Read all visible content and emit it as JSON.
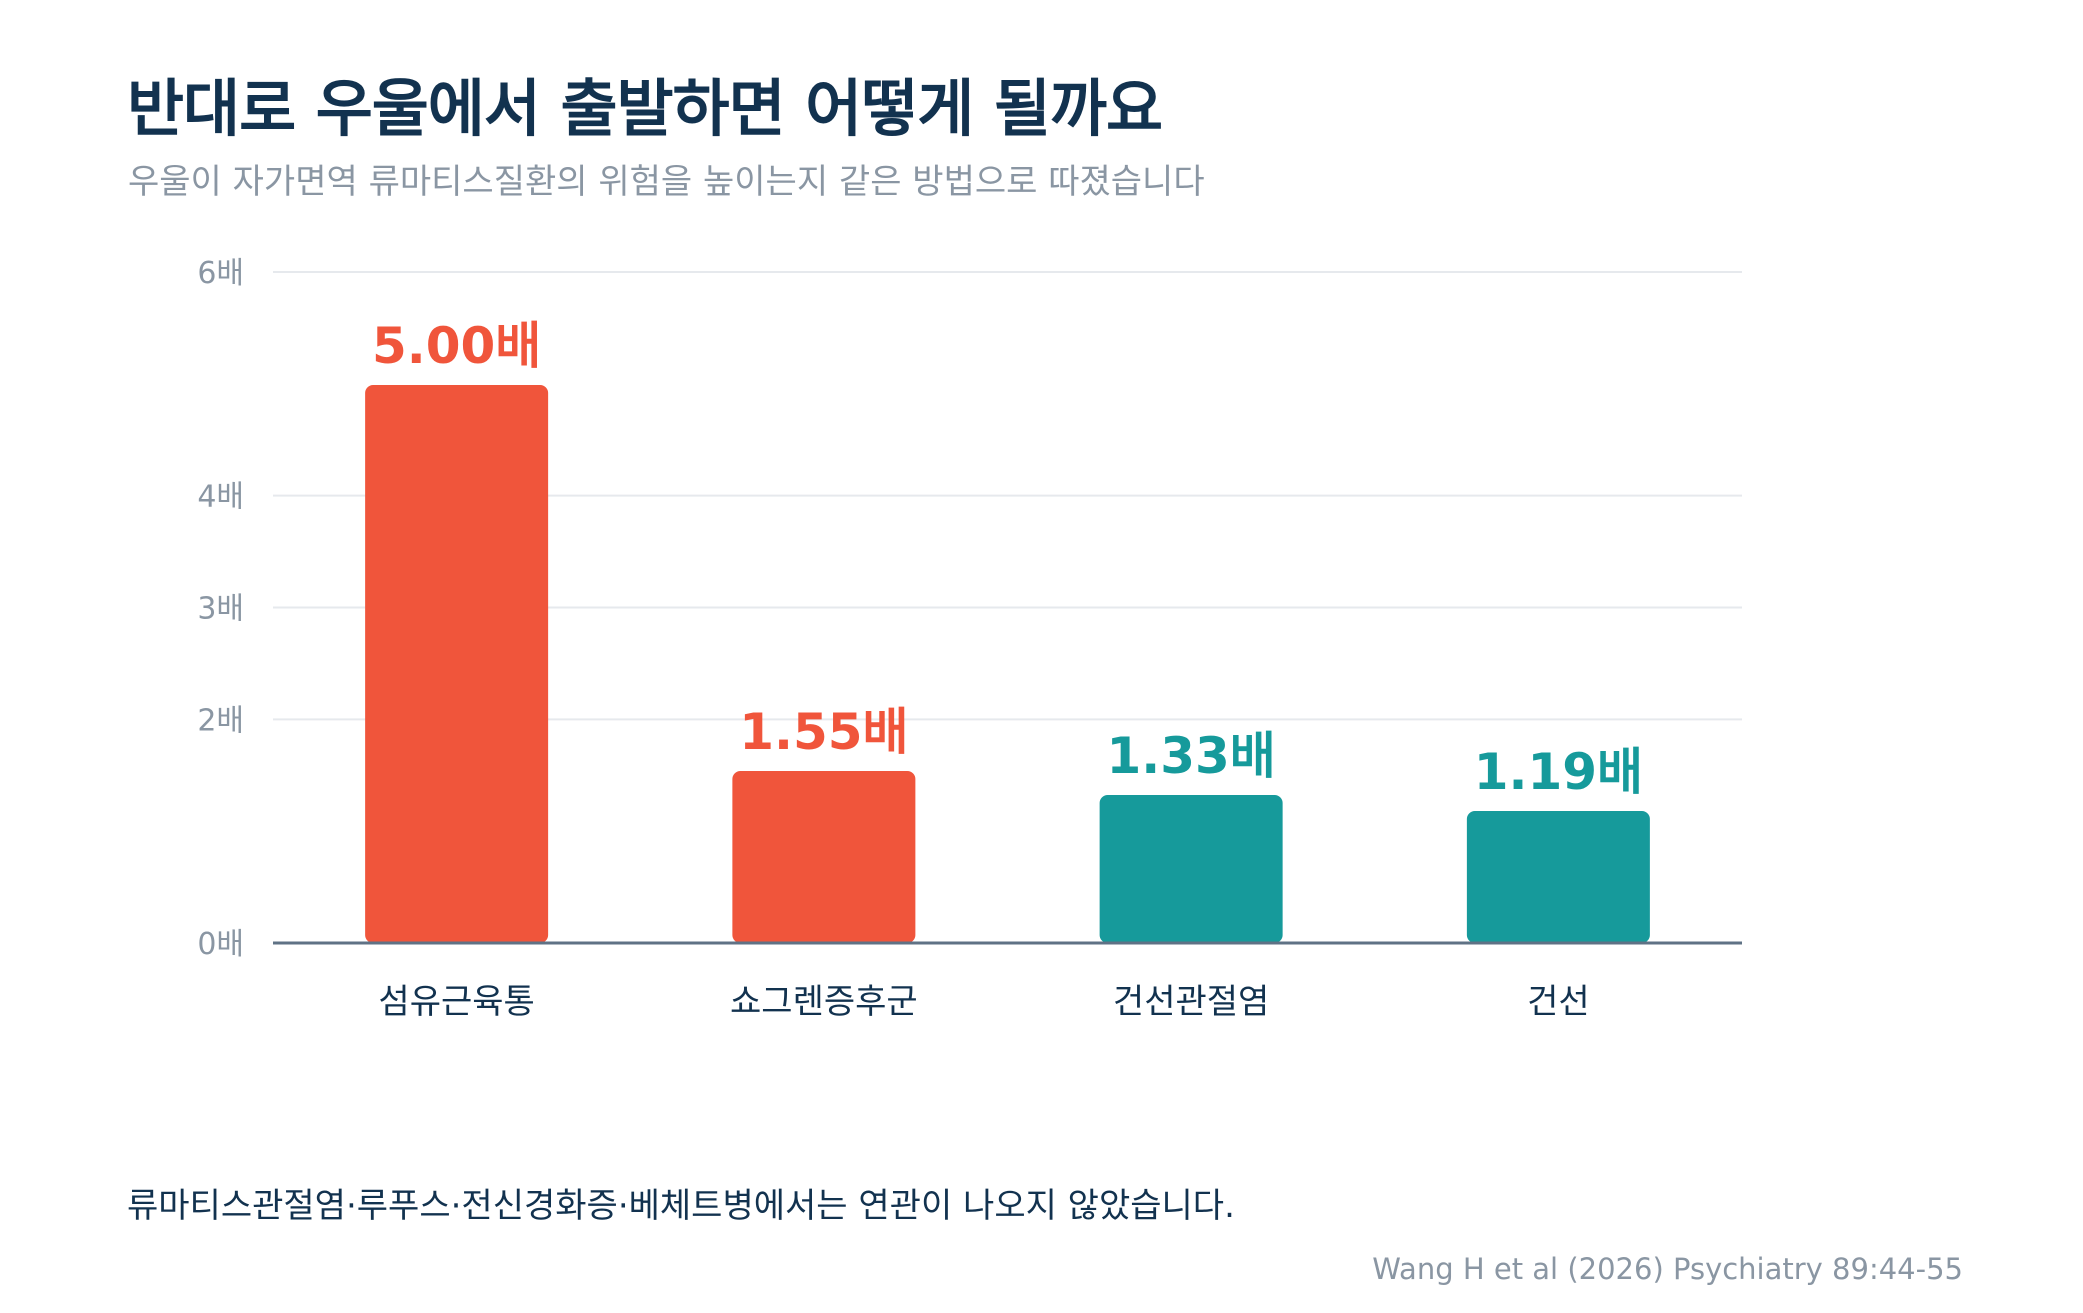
{
  "title": "반대로 우울에서 출발하면 어떻게 될까요",
  "subtitle": "우울이 자가면역 류마티스질환의 위험을 높이는지 같은 방법으로 따졌습니다",
  "chart_data": {
    "type": "bar",
    "categories": [
      "섬유근육통",
      "쇼그렌증후군",
      "건선관절염",
      "건선"
    ],
    "values": [
      5.0,
      1.55,
      1.33,
      1.19
    ],
    "value_labels": [
      "5.00배",
      "1.55배",
      "1.33배",
      "1.19배"
    ],
    "bar_colors": [
      "#f0553b",
      "#f0553b",
      "#169a9b",
      "#169a9b"
    ],
    "y_ticks": [
      {
        "value": 0,
        "label": "0배"
      },
      {
        "value": 2,
        "label": "2배"
      },
      {
        "value": 3,
        "label": "3배"
      },
      {
        "value": 4,
        "label": "4배"
      },
      {
        "value": 6,
        "label": "6배"
      }
    ],
    "ylim": [
      0,
      6
    ],
    "grid": true
  },
  "footnote": "류마티스관절염·루푸스·전신경화증·베체트병에서는 연관이 나오지 않았습니다.",
  "source": "Wang H et al (2026) Psychiatry 89:44-55",
  "colors": {
    "title": "#12324f",
    "muted": "#8a96a3",
    "risk": "#f0553b",
    "teal": "#169a9b",
    "grid": "#e6e9ed",
    "baseline": "#5f7285"
  }
}
